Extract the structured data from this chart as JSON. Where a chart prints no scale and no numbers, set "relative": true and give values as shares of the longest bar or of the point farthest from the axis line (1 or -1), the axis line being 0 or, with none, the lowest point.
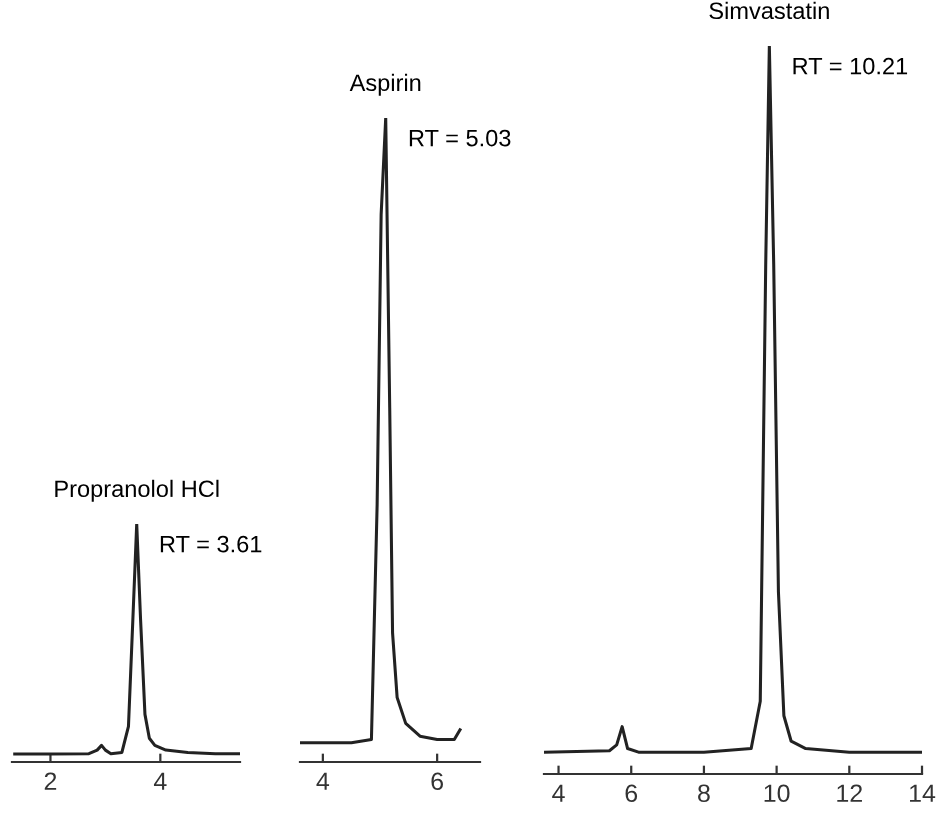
{
  "chart_data": [
    {
      "type": "line",
      "relative": true,
      "tick_labels": "x",
      "xlim": [
        1.3,
        5.45
      ],
      "xticks": [
        2,
        4
      ],
      "annotations": [
        "Propranolol HCl",
        "RT = 3.61"
      ],
      "x": [
        1.35,
        2.0,
        2.7,
        2.85,
        2.93,
        3.0,
        3.1,
        3.3,
        3.42,
        3.5,
        3.57,
        3.64,
        3.72,
        3.8,
        3.9,
        4.1,
        4.5,
        5.0,
        5.43
      ],
      "series": [
        {
          "color": "#222222",
          "values": [
            0.034,
            0.034,
            0.035,
            0.05,
            0.07,
            0.05,
            0.035,
            0.04,
            0.15,
            0.6,
            1,
            0.6,
            0.2,
            0.1,
            0.07,
            0.05,
            0.04,
            0.035,
            0.035
          ]
        }
      ]
    },
    {
      "type": "line",
      "relative": true,
      "tick_labels": "x",
      "xlim": [
        3.6,
        6.75
      ],
      "xticks": [
        4,
        6
      ],
      "annotations": [
        "Aspirin",
        "RT = 5.03"
      ],
      "x": [
        3.6,
        4.5,
        4.85,
        4.95,
        5.02,
        5.1,
        5.17,
        5.22,
        5.3,
        5.45,
        5.7,
        6.0,
        6.3,
        6.4
      ],
      "series": [
        {
          "color": "#222222",
          "values": [
            0.03,
            0.03,
            0.035,
            0.4,
            0.85,
            1,
            0.55,
            0.2,
            0.1,
            0.06,
            0.04,
            0.035,
            0.035,
            0.05
          ]
        }
      ]
    },
    {
      "type": "line",
      "relative": true,
      "tick_labels": "x",
      "xlim": [
        3.6,
        14
      ],
      "xticks": [
        4,
        6,
        8,
        10,
        12,
        14
      ],
      "annotations": [
        "Simvastatin",
        "RT = 10.21"
      ],
      "x": [
        3.6,
        5.4,
        5.6,
        5.75,
        5.9,
        6.2,
        8,
        9.3,
        9.55,
        9.7,
        9.8,
        9.92,
        10.05,
        10.2,
        10.4,
        10.8,
        12,
        14
      ],
      "series": [
        {
          "color": "#222222",
          "values": [
            0.03,
            0.032,
            0.04,
            0.065,
            0.035,
            0.03,
            0.03,
            0.035,
            0.1,
            0.7,
            1,
            0.7,
            0.25,
            0.08,
            0.045,
            0.035,
            0.03,
            0.03
          ]
        }
      ]
    }
  ]
}
